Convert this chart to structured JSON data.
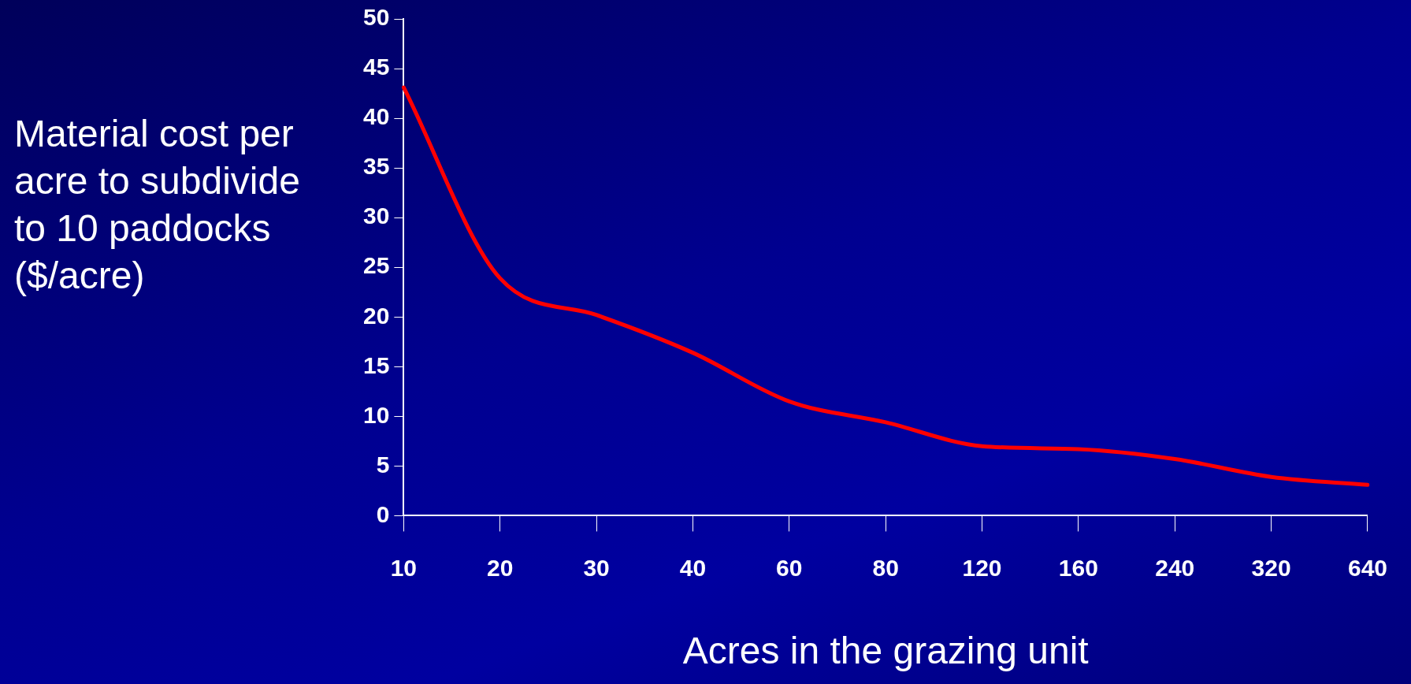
{
  "chart_data": {
    "type": "line",
    "xlabel": "Acres in the grazing unit",
    "ylabel": "Material cost per acre to subdivide to 10 paddocks\n($/acre)",
    "categories": [
      "10",
      "20",
      "30",
      "40",
      "60",
      "80",
      "120",
      "160",
      "240",
      "320",
      "640"
    ],
    "series": [
      {
        "color": "#ff0000",
        "values": [
          43.1,
          23.9,
          20.2,
          16.4,
          11.5,
          9.4,
          7.0,
          6.7,
          5.7,
          3.9,
          3.1
        ]
      }
    ],
    "ylim": [
      0,
      50
    ],
    "yticks": [
      0,
      5,
      10,
      15,
      20,
      25,
      30,
      35,
      40,
      45,
      50
    ],
    "grid": false,
    "legend": false,
    "marker": "none",
    "line_style": "solid"
  }
}
